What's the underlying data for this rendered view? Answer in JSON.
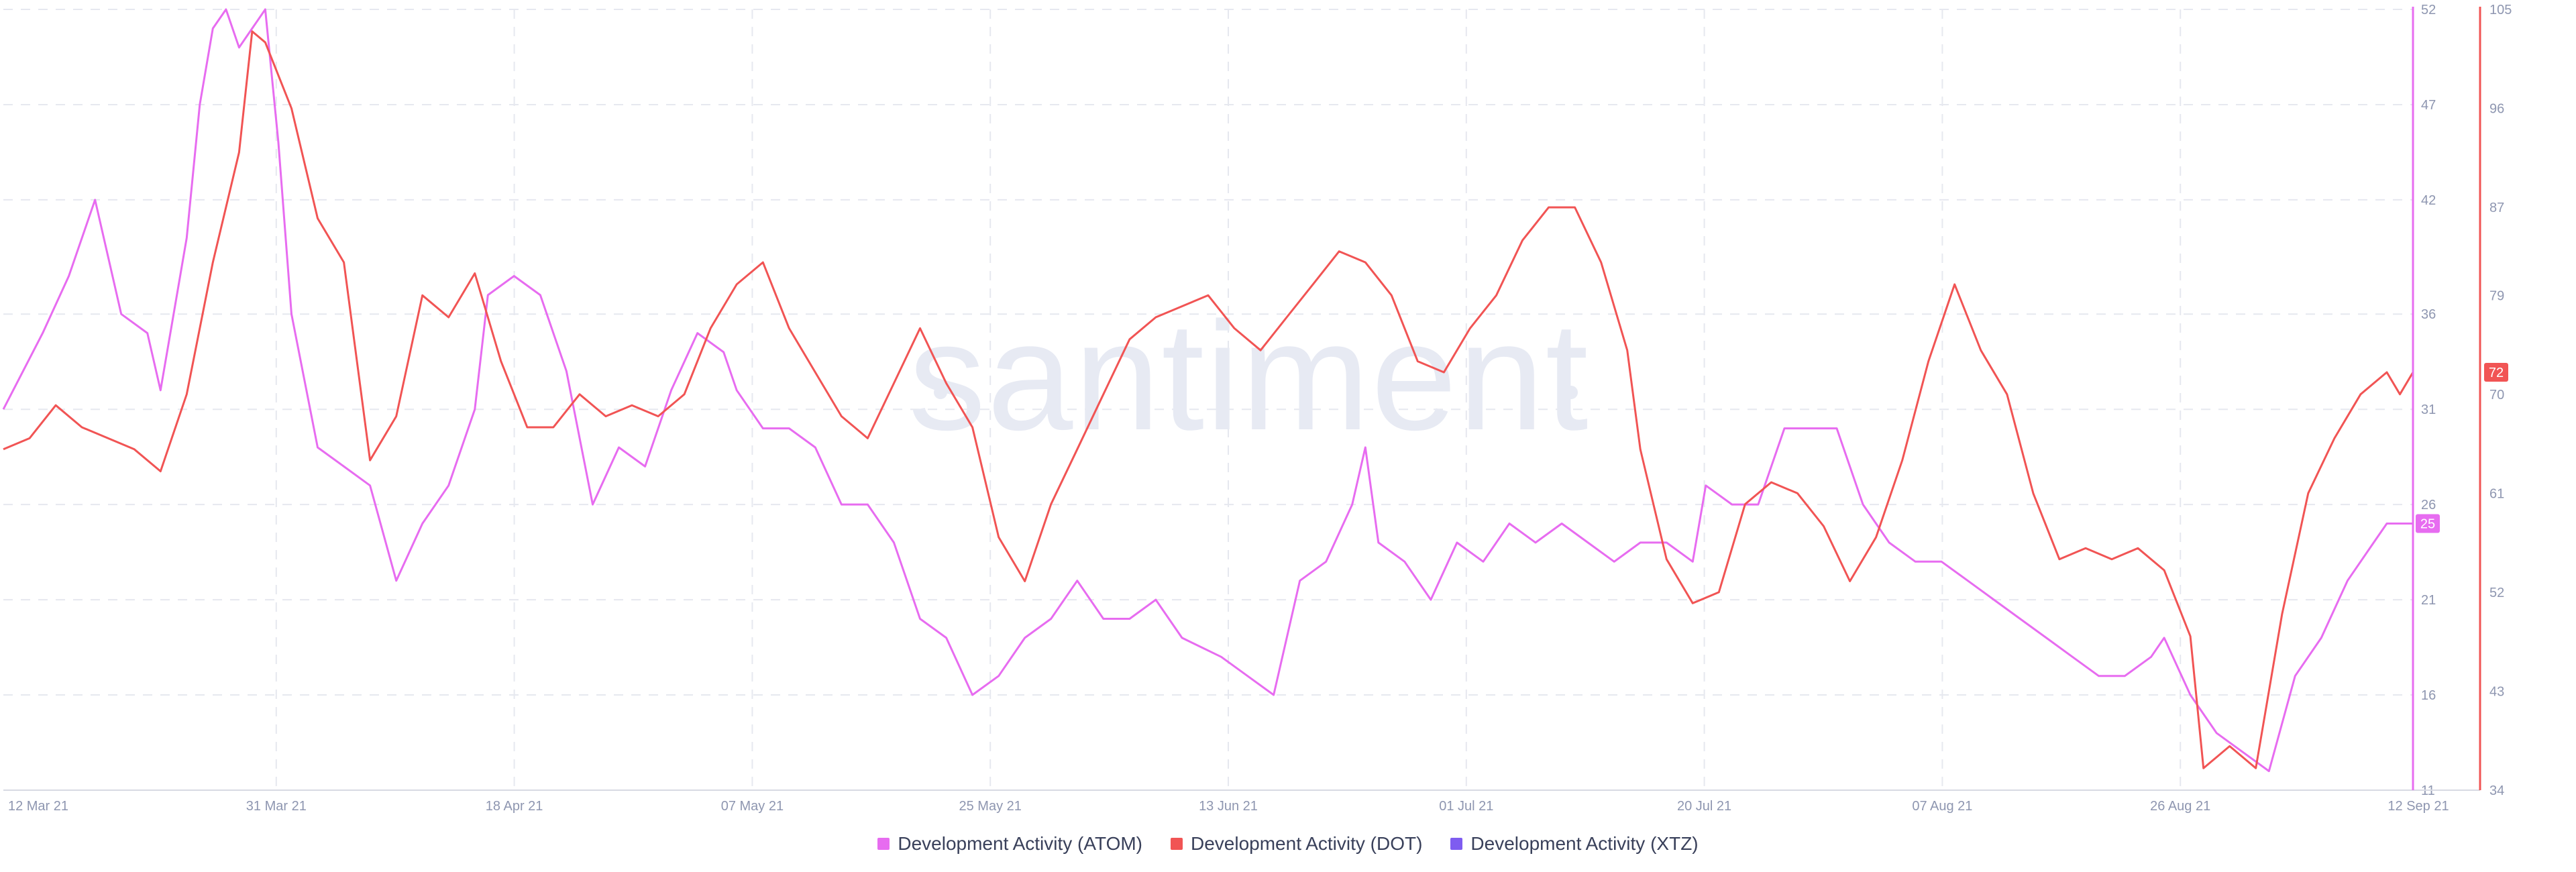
{
  "watermark": "santiment",
  "legend": [
    {
      "label": "Development Activity (ATOM)",
      "color": "#e76cf0"
    },
    {
      "label": "Development Activity (DOT)",
      "color": "#f15454"
    },
    {
      "label": "Development Activity (XTZ)",
      "color": "#7e5cf0"
    }
  ],
  "chart_data": {
    "type": "line",
    "x_tick_labels": [
      "12 Mar 21",
      "31 Mar 21",
      "18 Apr 21",
      "07 May 21",
      "25 May 21",
      "13 Jun 21",
      "01 Jul 21",
      "20 Jul 21",
      "07 Aug 21",
      "26 Aug 21",
      "12 Sep 21"
    ],
    "xlim": [
      "2021-03-12",
      "2021-09-12"
    ],
    "grid": true,
    "legend_position": "bottom",
    "axes": {
      "atom": {
        "ticks": [
          11,
          16,
          21,
          26,
          31,
          36,
          42,
          47,
          52
        ],
        "ylim": [
          11,
          52
        ],
        "color": "#e76cf0",
        "current_value": "25"
      },
      "dot": {
        "ticks": [
          34,
          43,
          52,
          61,
          70,
          79,
          87,
          96,
          105
        ],
        "ylim": [
          34,
          105
        ],
        "color": "#f15454",
        "current_value": "72"
      }
    },
    "series": [
      {
        "name": "Development Activity (ATOM)",
        "axis": "atom",
        "color": "#e76cf0",
        "points": [
          [
            "2021-03-12",
            31
          ],
          [
            "2021-03-15",
            35
          ],
          [
            "2021-03-17",
            38
          ],
          [
            "2021-03-19",
            42
          ],
          [
            "2021-03-21",
            36
          ],
          [
            "2021-03-23",
            35
          ],
          [
            "2021-03-24",
            32
          ],
          [
            "2021-03-26",
            40
          ],
          [
            "2021-03-27",
            47
          ],
          [
            "2021-03-28",
            51
          ],
          [
            "2021-03-29",
            52
          ],
          [
            "2021-03-30",
            50
          ],
          [
            "2021-03-31",
            51
          ],
          [
            "2021-04-01",
            52
          ],
          [
            "2021-04-02",
            45
          ],
          [
            "2021-04-03",
            36
          ],
          [
            "2021-04-05",
            29
          ],
          [
            "2021-04-07",
            28
          ],
          [
            "2021-04-09",
            27
          ],
          [
            "2021-04-11",
            22
          ],
          [
            "2021-04-13",
            25
          ],
          [
            "2021-04-15",
            27
          ],
          [
            "2021-04-17",
            31
          ],
          [
            "2021-04-18",
            37
          ],
          [
            "2021-04-20",
            38
          ],
          [
            "2021-04-22",
            37
          ],
          [
            "2021-04-24",
            33
          ],
          [
            "2021-04-26",
            26
          ],
          [
            "2021-04-28",
            29
          ],
          [
            "2021-04-30",
            28
          ],
          [
            "2021-05-02",
            32
          ],
          [
            "2021-05-04",
            35
          ],
          [
            "2021-05-06",
            34
          ],
          [
            "2021-05-07",
            32
          ],
          [
            "2021-05-09",
            30
          ],
          [
            "2021-05-11",
            30
          ],
          [
            "2021-05-13",
            29
          ],
          [
            "2021-05-15",
            26
          ],
          [
            "2021-05-17",
            26
          ],
          [
            "2021-05-19",
            24
          ],
          [
            "2021-05-21",
            20
          ],
          [
            "2021-05-23",
            19
          ],
          [
            "2021-05-25",
            16
          ],
          [
            "2021-05-27",
            17
          ],
          [
            "2021-05-29",
            19
          ],
          [
            "2021-05-31",
            20
          ],
          [
            "2021-06-02",
            22
          ],
          [
            "2021-06-04",
            20
          ],
          [
            "2021-06-06",
            20
          ],
          [
            "2021-06-08",
            21
          ],
          [
            "2021-06-10",
            19
          ],
          [
            "2021-06-13",
            18
          ],
          [
            "2021-06-15",
            17
          ],
          [
            "2021-06-17",
            16
          ],
          [
            "2021-06-19",
            22
          ],
          [
            "2021-06-21",
            23
          ],
          [
            "2021-06-23",
            26
          ],
          [
            "2021-06-24",
            29
          ],
          [
            "2021-06-25",
            24
          ],
          [
            "2021-06-27",
            23
          ],
          [
            "2021-06-29",
            21
          ],
          [
            "2021-07-01",
            24
          ],
          [
            "2021-07-03",
            23
          ],
          [
            "2021-07-05",
            25
          ],
          [
            "2021-07-07",
            24
          ],
          [
            "2021-07-09",
            25
          ],
          [
            "2021-07-11",
            24
          ],
          [
            "2021-07-13",
            23
          ],
          [
            "2021-07-15",
            24
          ],
          [
            "2021-07-17",
            24
          ],
          [
            "2021-07-19",
            23
          ],
          [
            "2021-07-20",
            27
          ],
          [
            "2021-07-22",
            26
          ],
          [
            "2021-07-24",
            26
          ],
          [
            "2021-07-26",
            30
          ],
          [
            "2021-07-28",
            30
          ],
          [
            "2021-07-30",
            30
          ],
          [
            "2021-08-01",
            26
          ],
          [
            "2021-08-03",
            24
          ],
          [
            "2021-08-05",
            23
          ],
          [
            "2021-08-07",
            23
          ],
          [
            "2021-08-09",
            22
          ],
          [
            "2021-08-11",
            21
          ],
          [
            "2021-08-13",
            20
          ],
          [
            "2021-08-15",
            19
          ],
          [
            "2021-08-17",
            18
          ],
          [
            "2021-08-19",
            17
          ],
          [
            "2021-08-21",
            17
          ],
          [
            "2021-08-23",
            18
          ],
          [
            "2021-08-24",
            19
          ],
          [
            "2021-08-26",
            16
          ],
          [
            "2021-08-28",
            14
          ],
          [
            "2021-08-30",
            13
          ],
          [
            "2021-09-01",
            12
          ],
          [
            "2021-09-03",
            17
          ],
          [
            "2021-09-05",
            19
          ],
          [
            "2021-09-07",
            22
          ],
          [
            "2021-09-09",
            24
          ],
          [
            "2021-09-10",
            25
          ],
          [
            "2021-09-12",
            25
          ]
        ]
      },
      {
        "name": "Development Activity (DOT)",
        "axis": "dot",
        "color": "#f15454",
        "points": [
          [
            "2021-03-12",
            65
          ],
          [
            "2021-03-14",
            66
          ],
          [
            "2021-03-16",
            69
          ],
          [
            "2021-03-18",
            67
          ],
          [
            "2021-03-20",
            66
          ],
          [
            "2021-03-22",
            65
          ],
          [
            "2021-03-24",
            63
          ],
          [
            "2021-03-26",
            70
          ],
          [
            "2021-03-28",
            82
          ],
          [
            "2021-03-30",
            92
          ],
          [
            "2021-03-31",
            103
          ],
          [
            "2021-04-01",
            102
          ],
          [
            "2021-04-03",
            96
          ],
          [
            "2021-04-05",
            86
          ],
          [
            "2021-04-07",
            82
          ],
          [
            "2021-04-09",
            64
          ],
          [
            "2021-04-11",
            68
          ],
          [
            "2021-04-13",
            79
          ],
          [
            "2021-04-15",
            77
          ],
          [
            "2021-04-17",
            81
          ],
          [
            "2021-04-19",
            73
          ],
          [
            "2021-04-21",
            67
          ],
          [
            "2021-04-23",
            67
          ],
          [
            "2021-04-25",
            70
          ],
          [
            "2021-04-27",
            68
          ],
          [
            "2021-04-29",
            69
          ],
          [
            "2021-05-01",
            68
          ],
          [
            "2021-05-03",
            70
          ],
          [
            "2021-05-05",
            76
          ],
          [
            "2021-05-07",
            80
          ],
          [
            "2021-05-09",
            82
          ],
          [
            "2021-05-11",
            76
          ],
          [
            "2021-05-13",
            72
          ],
          [
            "2021-05-15",
            68
          ],
          [
            "2021-05-17",
            66
          ],
          [
            "2021-05-19",
            71
          ],
          [
            "2021-05-21",
            76
          ],
          [
            "2021-05-23",
            71
          ],
          [
            "2021-05-25",
            67
          ],
          [
            "2021-05-27",
            57
          ],
          [
            "2021-05-29",
            53
          ],
          [
            "2021-05-31",
            60
          ],
          [
            "2021-06-02",
            65
          ],
          [
            "2021-06-04",
            70
          ],
          [
            "2021-06-06",
            75
          ],
          [
            "2021-06-08",
            77
          ],
          [
            "2021-06-10",
            78
          ],
          [
            "2021-06-12",
            79
          ],
          [
            "2021-06-14",
            76
          ],
          [
            "2021-06-16",
            74
          ],
          [
            "2021-06-18",
            77
          ],
          [
            "2021-06-20",
            80
          ],
          [
            "2021-06-22",
            83
          ],
          [
            "2021-06-24",
            82
          ],
          [
            "2021-06-26",
            79
          ],
          [
            "2021-06-28",
            73
          ],
          [
            "2021-06-30",
            72
          ],
          [
            "2021-07-02",
            76
          ],
          [
            "2021-07-04",
            79
          ],
          [
            "2021-07-06",
            84
          ],
          [
            "2021-07-08",
            87
          ],
          [
            "2021-07-10",
            87
          ],
          [
            "2021-07-12",
            82
          ],
          [
            "2021-07-14",
            74
          ],
          [
            "2021-07-15",
            65
          ],
          [
            "2021-07-17",
            55
          ],
          [
            "2021-07-19",
            51
          ],
          [
            "2021-07-21",
            52
          ],
          [
            "2021-07-23",
            60
          ],
          [
            "2021-07-25",
            62
          ],
          [
            "2021-07-27",
            61
          ],
          [
            "2021-07-29",
            58
          ],
          [
            "2021-07-31",
            53
          ],
          [
            "2021-08-02",
            57
          ],
          [
            "2021-08-04",
            64
          ],
          [
            "2021-08-06",
            73
          ],
          [
            "2021-08-08",
            80
          ],
          [
            "2021-08-10",
            74
          ],
          [
            "2021-08-12",
            70
          ],
          [
            "2021-08-14",
            61
          ],
          [
            "2021-08-16",
            55
          ],
          [
            "2021-08-18",
            56
          ],
          [
            "2021-08-20",
            55
          ],
          [
            "2021-08-22",
            56
          ],
          [
            "2021-08-24",
            54
          ],
          [
            "2021-08-26",
            48
          ],
          [
            "2021-08-27",
            36
          ],
          [
            "2021-08-29",
            38
          ],
          [
            "2021-08-31",
            36
          ],
          [
            "2021-09-02",
            50
          ],
          [
            "2021-09-04",
            61
          ],
          [
            "2021-09-06",
            66
          ],
          [
            "2021-09-08",
            70
          ],
          [
            "2021-09-10",
            72
          ],
          [
            "2021-09-11",
            70
          ],
          [
            "2021-09-12",
            72
          ]
        ]
      },
      {
        "name": "Development Activity (XTZ)",
        "color": "#7e5cf0",
        "points": []
      }
    ]
  }
}
